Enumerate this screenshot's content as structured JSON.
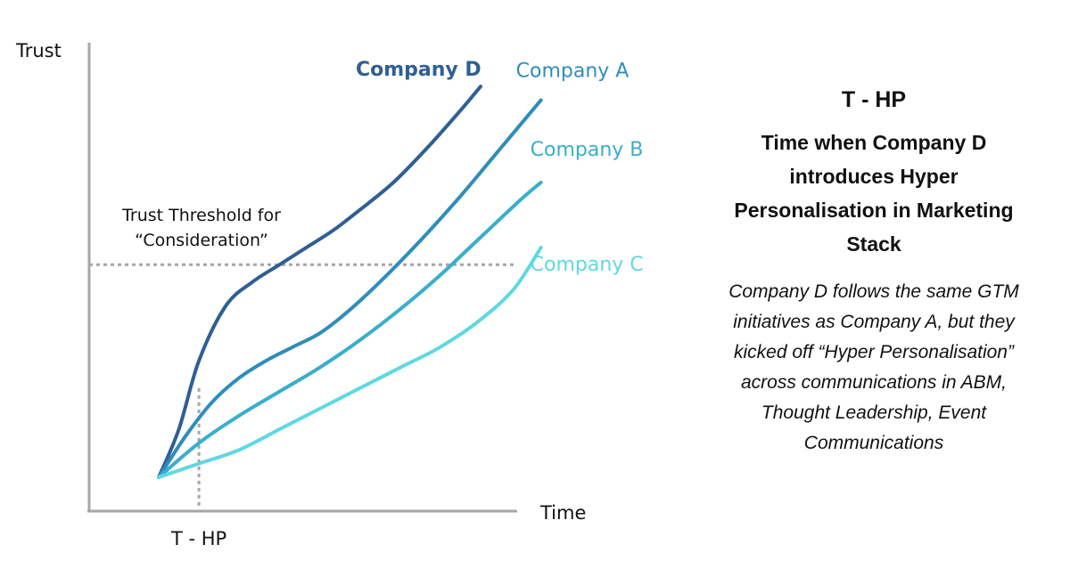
{
  "chart_data": {
    "type": "line",
    "ylabel": "Trust",
    "xlabel": "Time",
    "x_marker_label": "T - HP",
    "threshold_label_lines": [
      "Trust Threshold for",
      "“Consideration”"
    ],
    "origin": [
      0,
      0
    ],
    "threshold": 62,
    "t_hp": 12,
    "series": [
      {
        "name": "Company D",
        "color": "#2f5f94",
        "bold": true,
        "points": [
          [
            0,
            0
          ],
          [
            6,
            14
          ],
          [
            12,
            34
          ],
          [
            20,
            50
          ],
          [
            28,
            57
          ],
          [
            36,
            62
          ],
          [
            44,
            67
          ],
          [
            52,
            72
          ],
          [
            60,
            78
          ],
          [
            70,
            86
          ],
          [
            80,
            96
          ],
          [
            90,
            107
          ],
          [
            96,
            114
          ]
        ]
      },
      {
        "name": "Company A",
        "color": "#2e8dbb",
        "bold": false,
        "points": [
          [
            0,
            0
          ],
          [
            8,
            12
          ],
          [
            16,
            22
          ],
          [
            24,
            29
          ],
          [
            32,
            34
          ],
          [
            40,
            38
          ],
          [
            48,
            42
          ],
          [
            56,
            48
          ],
          [
            66,
            57
          ],
          [
            78,
            69
          ],
          [
            90,
            82
          ],
          [
            102,
            96
          ],
          [
            114,
            110
          ]
        ]
      },
      {
        "name": "Company B",
        "color": "#39aecd",
        "bold": false,
        "points": [
          [
            0,
            0
          ],
          [
            12,
            10
          ],
          [
            24,
            18
          ],
          [
            36,
            25
          ],
          [
            48,
            32
          ],
          [
            60,
            40
          ],
          [
            72,
            49
          ],
          [
            84,
            59
          ],
          [
            96,
            70
          ],
          [
            108,
            81
          ],
          [
            114,
            86
          ]
        ]
      },
      {
        "name": "Company C",
        "color": "#5fd8e3",
        "bold": false,
        "points": [
          [
            0,
            0
          ],
          [
            12,
            4
          ],
          [
            24,
            8
          ],
          [
            36,
            14
          ],
          [
            48,
            20
          ],
          [
            60,
            26
          ],
          [
            72,
            32
          ],
          [
            84,
            38
          ],
          [
            96,
            46
          ],
          [
            106,
            55
          ],
          [
            114,
            67
          ]
        ]
      }
    ]
  },
  "side_panel": {
    "title": "T - HP",
    "subtitle": "Time when Company D introduces Hyper Personalisation in Marketing Stack",
    "description": "Company D follows the same GTM initiatives as Company A, but they kicked off “Hyper Personalisation” across communications in ABM, Thought Leadership, Event Communications"
  }
}
